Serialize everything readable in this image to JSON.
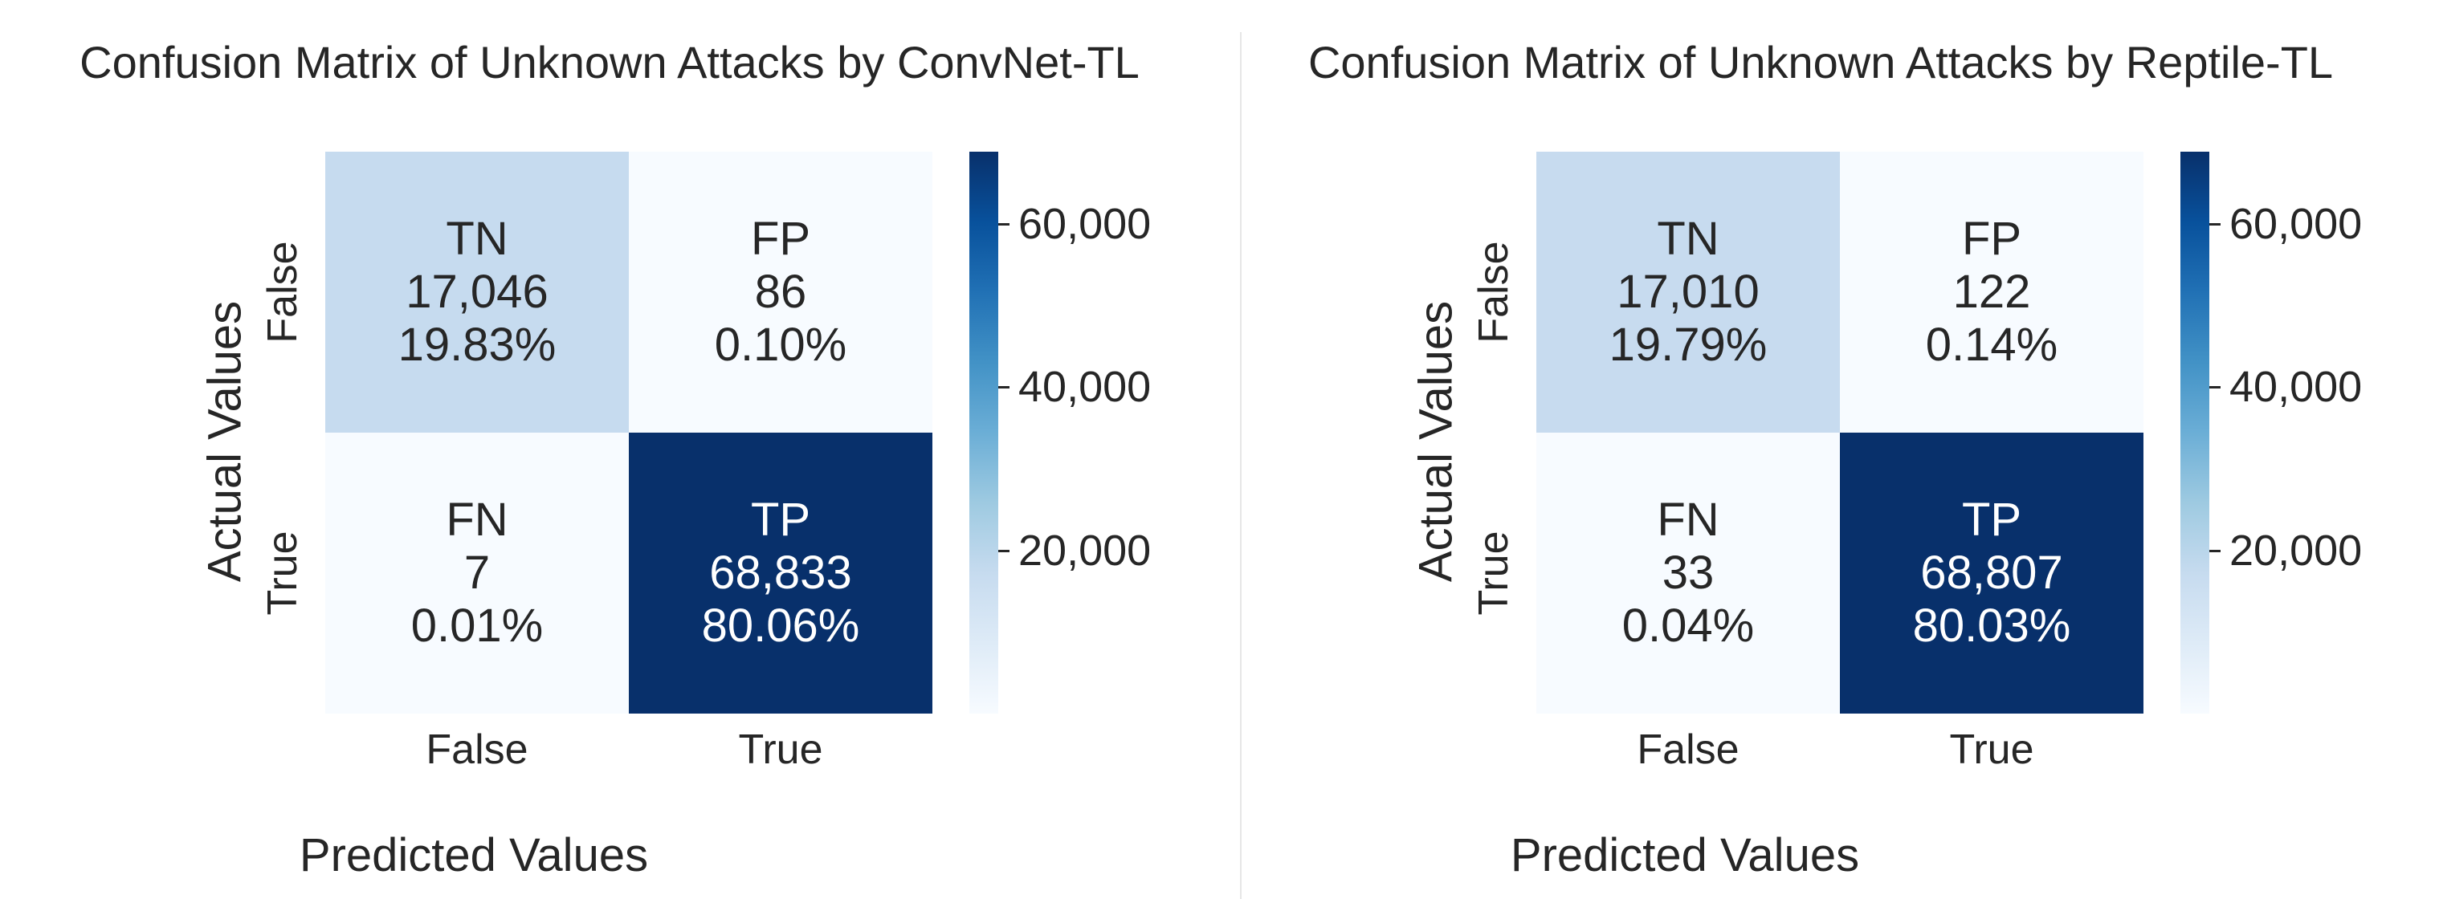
{
  "chart_data": [
    {
      "type": "heatmap",
      "title": "Confusion Matrix of Unknown Attacks by ConvNet-TL",
      "xlabel": "Predicted Values",
      "ylabel": "Actual Values",
      "x_categories": [
        "False",
        "True"
      ],
      "y_categories": [
        "False",
        "True"
      ],
      "cells": [
        {
          "row": 0,
          "col": 0,
          "label": "TN",
          "value": 17046,
          "count": "17,046",
          "percent": "19.83%"
        },
        {
          "row": 0,
          "col": 1,
          "label": "FP",
          "value": 86,
          "count": "86",
          "percent": "0.10%"
        },
        {
          "row": 1,
          "col": 0,
          "label": "FN",
          "value": 7,
          "count": "7",
          "percent": "0.01%"
        },
        {
          "row": 1,
          "col": 1,
          "label": "TP",
          "value": 68833,
          "count": "68,833",
          "percent": "80.06%"
        }
      ],
      "colorbar": {
        "colormap": "Blues",
        "range": [
          7,
          68833
        ],
        "ticks": [
          20000,
          40000,
          60000
        ],
        "tick_labels": [
          "20,000",
          "40,000",
          "60,000"
        ]
      }
    },
    {
      "type": "heatmap",
      "title": "Confusion Matrix of Unknown Attacks by Reptile-TL",
      "xlabel": "Predicted Values",
      "ylabel": "Actual Values",
      "x_categories": [
        "False",
        "True"
      ],
      "y_categories": [
        "False",
        "True"
      ],
      "cells": [
        {
          "row": 0,
          "col": 0,
          "label": "TN",
          "value": 17010,
          "count": "17,010",
          "percent": "19.79%"
        },
        {
          "row": 0,
          "col": 1,
          "label": "FP",
          "value": 122,
          "count": "122",
          "percent": "0.14%"
        },
        {
          "row": 1,
          "col": 0,
          "label": "FN",
          "value": 33,
          "count": "33",
          "percent": "0.04%"
        },
        {
          "row": 1,
          "col": 1,
          "label": "TP",
          "value": 68807,
          "count": "68,807",
          "percent": "80.03%"
        }
      ],
      "colorbar": {
        "colormap": "Blues",
        "range": [
          33,
          68807
        ],
        "ticks": [
          20000,
          40000,
          60000
        ],
        "tick_labels": [
          "20,000",
          "40,000",
          "60,000"
        ]
      }
    }
  ]
}
